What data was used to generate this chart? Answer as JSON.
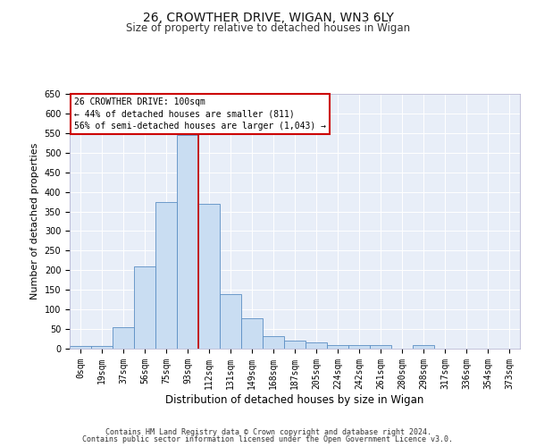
{
  "title_line1": "26, CROWTHER DRIVE, WIGAN, WN3 6LY",
  "title_line2": "Size of property relative to detached houses in Wigan",
  "xlabel": "Distribution of detached houses by size in Wigan",
  "ylabel": "Number of detached properties",
  "footer_line1": "Contains HM Land Registry data © Crown copyright and database right 2024.",
  "footer_line2": "Contains public sector information licensed under the Open Government Licence v3.0.",
  "bar_labels": [
    "0sqm",
    "19sqm",
    "37sqm",
    "56sqm",
    "75sqm",
    "93sqm",
    "112sqm",
    "131sqm",
    "149sqm",
    "168sqm",
    "187sqm",
    "205sqm",
    "224sqm",
    "242sqm",
    "261sqm",
    "280sqm",
    "298sqm",
    "317sqm",
    "336sqm",
    "354sqm",
    "373sqm"
  ],
  "bar_values": [
    6,
    7,
    54,
    210,
    375,
    545,
    370,
    140,
    77,
    31,
    20,
    15,
    9,
    9,
    9,
    0,
    8,
    0,
    0,
    0,
    0
  ],
  "bar_color": "#c9ddf2",
  "bar_edge_color": "#5b8ec4",
  "vline_x": 5.5,
  "vline_color": "#cc0000",
  "ylim": [
    0,
    650
  ],
  "yticks": [
    0,
    50,
    100,
    150,
    200,
    250,
    300,
    350,
    400,
    450,
    500,
    550,
    600,
    650
  ],
  "annotation_text": "26 CROWTHER DRIVE: 100sqm\n← 44% of detached houses are smaller (811)\n56% of semi-detached houses are larger (1,043) →",
  "annotation_box_facecolor": "#ffffff",
  "annotation_box_edgecolor": "#cc0000",
  "plot_bg_color": "#e8eef8",
  "grid_color": "#ffffff",
  "title1_fontsize": 10,
  "title2_fontsize": 8.5,
  "ylabel_fontsize": 8,
  "xlabel_fontsize": 8.5,
  "tick_fontsize": 7,
  "ann_fontsize": 7,
  "footer_fontsize": 6
}
